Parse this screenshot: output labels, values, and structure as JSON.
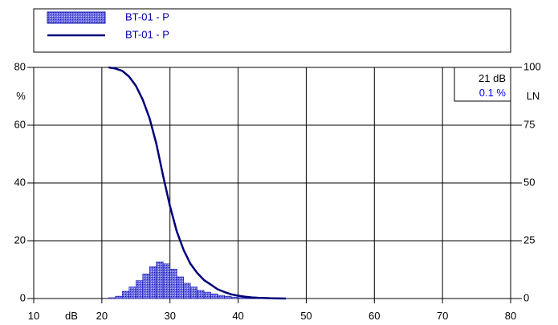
{
  "chart_data": {
    "type": "bar",
    "legend": {
      "placement": "top",
      "entries": [
        {
          "label": "BT-01 - P",
          "kind": "histogram-bar"
        },
        {
          "label": "BT-01 - P",
          "kind": "cumulative-line"
        }
      ]
    },
    "x_axis": {
      "unit_label": "dB",
      "range": [
        10,
        80
      ],
      "ticks": [
        "10",
        "20",
        "30",
        "40",
        "50",
        "60",
        "70",
        "80"
      ]
    },
    "y_left": {
      "unit_label": "%",
      "range": [
        0,
        80
      ],
      "ticks": [
        "0",
        "20",
        "40",
        "60",
        "80"
      ]
    },
    "y_right": {
      "unit_label": "LN",
      "range": [
        0,
        100
      ],
      "ticks": [
        "0",
        "25",
        "50",
        "75",
        "100"
      ]
    },
    "readout": {
      "level": "21 dB",
      "percent": "0.1 %"
    },
    "grid": true,
    "colors": {
      "bar_fill": "#6f6fe6",
      "bar_edge": "#1a1ab0",
      "line": "#00007a",
      "legend_text": "#0000aa",
      "readout_percent": "#0000ff"
    },
    "histogram": {
      "bin_width_db": 1,
      "bins_left_edge_db": [
        21,
        22,
        23,
        24,
        25,
        26,
        27,
        28,
        29,
        30,
        31,
        32,
        33,
        34,
        35,
        36,
        37,
        38,
        39,
        40,
        41,
        42
      ],
      "values_pct": [
        0.3,
        0.8,
        2.5,
        4.0,
        6.2,
        8.5,
        11.0,
        12.7,
        12.0,
        10.2,
        7.5,
        5.3,
        4.0,
        2.8,
        2.2,
        1.6,
        1.1,
        0.8,
        0.5,
        0.3,
        0.2,
        0.1
      ]
    },
    "cumulative_ln": {
      "x_db": [
        21,
        22,
        23,
        24,
        25,
        26,
        27,
        28,
        29,
        30,
        31,
        32,
        33,
        34,
        35,
        36,
        37,
        38,
        39,
        40,
        41,
        42,
        43,
        44,
        45,
        46,
        47
      ],
      "y_ln": [
        100,
        99.5,
        98.5,
        96,
        92,
        86,
        78,
        67,
        53,
        40,
        29,
        21,
        15,
        11,
        8,
        6,
        4,
        2.8,
        1.8,
        1.2,
        0.8,
        0.5,
        0.3,
        0.2,
        0.1,
        0.05,
        0
      ]
    }
  }
}
